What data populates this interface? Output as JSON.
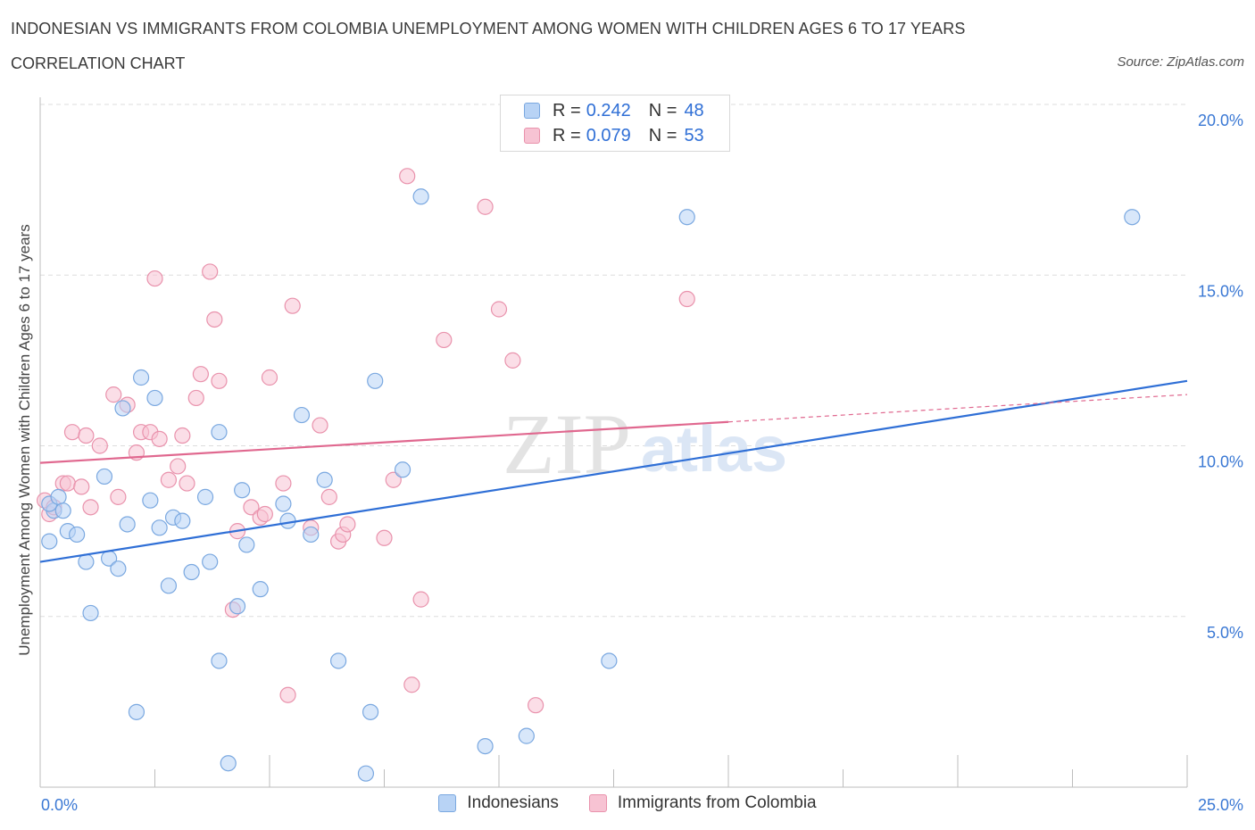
{
  "header": {
    "title": "INDONESIAN VS IMMIGRANTS FROM COLOMBIA UNEMPLOYMENT AMONG WOMEN WITH CHILDREN AGES 6 TO 17 YEARS",
    "subtitle": "CORRELATION CHART",
    "source": "Source: ZipAtlas.com"
  },
  "legend_top": {
    "rows": [
      {
        "r_label": "R =",
        "r_value": "0.242",
        "n_label": "N =",
        "n_value": "48"
      },
      {
        "r_label": "R =",
        "r_value": "0.079",
        "n_label": "N =",
        "n_value": "53"
      }
    ]
  },
  "watermark": {
    "zip": "ZIP",
    "atlas": "atlas"
  },
  "colors": {
    "blue_fill": "#b8d3f5",
    "blue_stroke": "#7aa8e0",
    "blue_line": "#2f6fd6",
    "pink_fill": "#f7c3d3",
    "pink_stroke": "#e992ac",
    "pink_line": "#e0688f",
    "tick_label": "#3a78d4",
    "grid": "#dddddd"
  },
  "chart_data": {
    "type": "scatter",
    "title": "INDONESIAN VS IMMIGRANTS FROM COLOMBIA UNEMPLOYMENT AMONG WOMEN WITH CHILDREN AGES 6 TO 17 YEARS",
    "xlabel": "",
    "ylabel": "Unemployment Among Women with Children Ages 6 to 17 years",
    "xlim": [
      0,
      25
    ],
    "ylim": [
      0,
      20
    ],
    "x_tick_labels": [
      "0.0%",
      "25.0%"
    ],
    "y_ticks": [
      5,
      10,
      15,
      20
    ],
    "y_tick_labels": [
      "5.0%",
      "10.0%",
      "15.0%",
      "20.0%"
    ],
    "grid": true,
    "legend_position": "bottom",
    "series": [
      {
        "name": "Indonesians",
        "R": 0.242,
        "N": 48,
        "trend": {
          "x0": 0,
          "y0": 6.6,
          "x1": 25,
          "y1": 11.9
        },
        "points": [
          [
            0.2,
            7.2
          ],
          [
            0.3,
            8.1
          ],
          [
            0.2,
            8.3
          ],
          [
            0.4,
            8.5
          ],
          [
            0.5,
            8.1
          ],
          [
            0.6,
            7.5
          ],
          [
            0.8,
            7.4
          ],
          [
            1.0,
            6.6
          ],
          [
            1.1,
            5.1
          ],
          [
            1.4,
            9.1
          ],
          [
            1.5,
            6.7
          ],
          [
            1.7,
            6.4
          ],
          [
            1.8,
            11.1
          ],
          [
            1.9,
            7.7
          ],
          [
            2.1,
            2.2
          ],
          [
            2.2,
            12.0
          ],
          [
            2.4,
            8.4
          ],
          [
            2.5,
            11.4
          ],
          [
            2.6,
            7.6
          ],
          [
            2.8,
            5.9
          ],
          [
            2.9,
            7.9
          ],
          [
            3.1,
            7.8
          ],
          [
            3.3,
            6.3
          ],
          [
            3.6,
            8.5
          ],
          [
            3.7,
            6.6
          ],
          [
            3.9,
            3.7
          ],
          [
            3.9,
            10.4
          ],
          [
            4.1,
            0.7
          ],
          [
            4.3,
            5.3
          ],
          [
            4.4,
            8.7
          ],
          [
            4.5,
            7.1
          ],
          [
            4.8,
            5.8
          ],
          [
            5.3,
            8.3
          ],
          [
            5.4,
            7.8
          ],
          [
            5.7,
            10.9
          ],
          [
            5.9,
            7.4
          ],
          [
            6.2,
            9.0
          ],
          [
            6.5,
            3.7
          ],
          [
            7.1,
            0.4
          ],
          [
            7.2,
            2.2
          ],
          [
            7.3,
            11.9
          ],
          [
            7.9,
            9.3
          ],
          [
            8.3,
            17.3
          ],
          [
            9.7,
            1.2
          ],
          [
            10.6,
            1.5
          ],
          [
            12.4,
            3.7
          ],
          [
            14.1,
            16.7
          ],
          [
            23.8,
            16.7
          ]
        ]
      },
      {
        "name": "Immigrants from Colombia",
        "R": 0.079,
        "N": 53,
        "trend": {
          "x0": 0,
          "y0": 9.5,
          "x1": 15,
          "y1": 10.7,
          "dash_x1": 25,
          "dash_y1": 11.5
        },
        "points": [
          [
            0.1,
            8.4
          ],
          [
            0.2,
            8.0
          ],
          [
            0.3,
            8.2
          ],
          [
            0.5,
            8.9
          ],
          [
            0.6,
            8.9
          ],
          [
            0.7,
            10.4
          ],
          [
            0.9,
            8.8
          ],
          [
            1.0,
            10.3
          ],
          [
            1.1,
            8.2
          ],
          [
            1.3,
            10.0
          ],
          [
            1.6,
            11.5
          ],
          [
            1.7,
            8.5
          ],
          [
            1.9,
            11.2
          ],
          [
            2.1,
            9.8
          ],
          [
            2.2,
            10.4
          ],
          [
            2.4,
            10.4
          ],
          [
            2.5,
            14.9
          ],
          [
            2.6,
            10.2
          ],
          [
            2.8,
            9.0
          ],
          [
            3.0,
            9.4
          ],
          [
            3.1,
            10.3
          ],
          [
            3.2,
            8.9
          ],
          [
            3.4,
            11.4
          ],
          [
            3.5,
            12.1
          ],
          [
            3.7,
            15.1
          ],
          [
            3.8,
            13.7
          ],
          [
            3.9,
            11.9
          ],
          [
            4.2,
            5.2
          ],
          [
            4.3,
            7.5
          ],
          [
            4.6,
            8.2
          ],
          [
            4.8,
            7.9
          ],
          [
            4.9,
            8.0
          ],
          [
            5.0,
            12.0
          ],
          [
            5.3,
            8.9
          ],
          [
            5.4,
            2.7
          ],
          [
            5.5,
            14.1
          ],
          [
            5.9,
            7.6
          ],
          [
            6.1,
            10.6
          ],
          [
            6.3,
            8.5
          ],
          [
            6.5,
            7.2
          ],
          [
            6.6,
            7.4
          ],
          [
            6.7,
            7.7
          ],
          [
            7.5,
            7.3
          ],
          [
            7.7,
            9.0
          ],
          [
            8.0,
            17.9
          ],
          [
            8.1,
            3.0
          ],
          [
            8.3,
            5.5
          ],
          [
            8.8,
            13.1
          ],
          [
            9.7,
            17.0
          ],
          [
            10.0,
            14.0
          ],
          [
            10.3,
            12.5
          ],
          [
            10.8,
            2.4
          ],
          [
            14.1,
            14.3
          ]
        ]
      }
    ]
  }
}
